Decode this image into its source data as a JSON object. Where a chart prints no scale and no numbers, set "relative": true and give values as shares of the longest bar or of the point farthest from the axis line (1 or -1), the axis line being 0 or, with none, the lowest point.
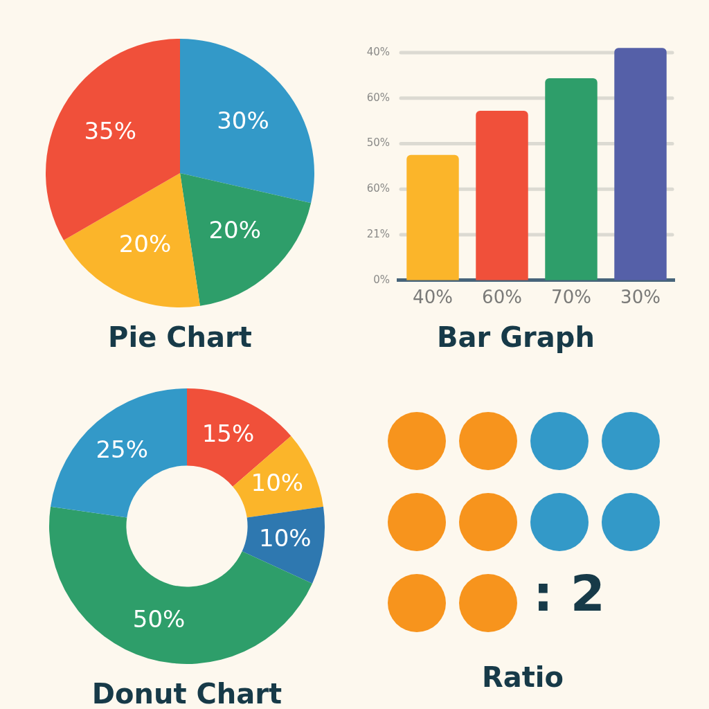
{
  "chart_data": [
    {
      "type": "pie",
      "title": "Pie Chart",
      "categories": [
        null,
        null,
        null,
        null
      ],
      "values": [
        30,
        20,
        20,
        35
      ],
      "colors": [
        "#3399c8",
        "#2e9e6a",
        "#fbb52a",
        "#f0503a"
      ],
      "value_labels": [
        "30%",
        "20%",
        "20%",
        "35%"
      ]
    },
    {
      "type": "bar",
      "title": "Bar Graph",
      "categories": [
        "40%",
        "60%",
        "70%",
        "30%"
      ],
      "values": [
        0.54,
        0.73,
        0.87,
        1
      ],
      "colors": [
        "#fbb52a",
        "#f0503a",
        "#2e9e6a",
        "#5560a8"
      ],
      "relative": true,
      "annotations": [
        "40%",
        "60%",
        "50%",
        "60%",
        "21%",
        "0%"
      ],
      "grid": "y"
    },
    {
      "type": "donut",
      "title": "Donut Chart",
      "categories": [
        null,
        null,
        null,
        null,
        null
      ],
      "values": [
        15,
        10,
        10,
        50,
        25
      ],
      "colors": [
        "#f0503a",
        "#fbb52a",
        "#2e78b0",
        "#2e9e6a",
        "#3399c8"
      ],
      "value_labels": [
        "15%",
        "10%",
        "10%",
        "50%",
        "25%"
      ]
    },
    {
      "type": "other",
      "title": "Ratio",
      "annotations": [
        ": 2"
      ]
    }
  ]
}
